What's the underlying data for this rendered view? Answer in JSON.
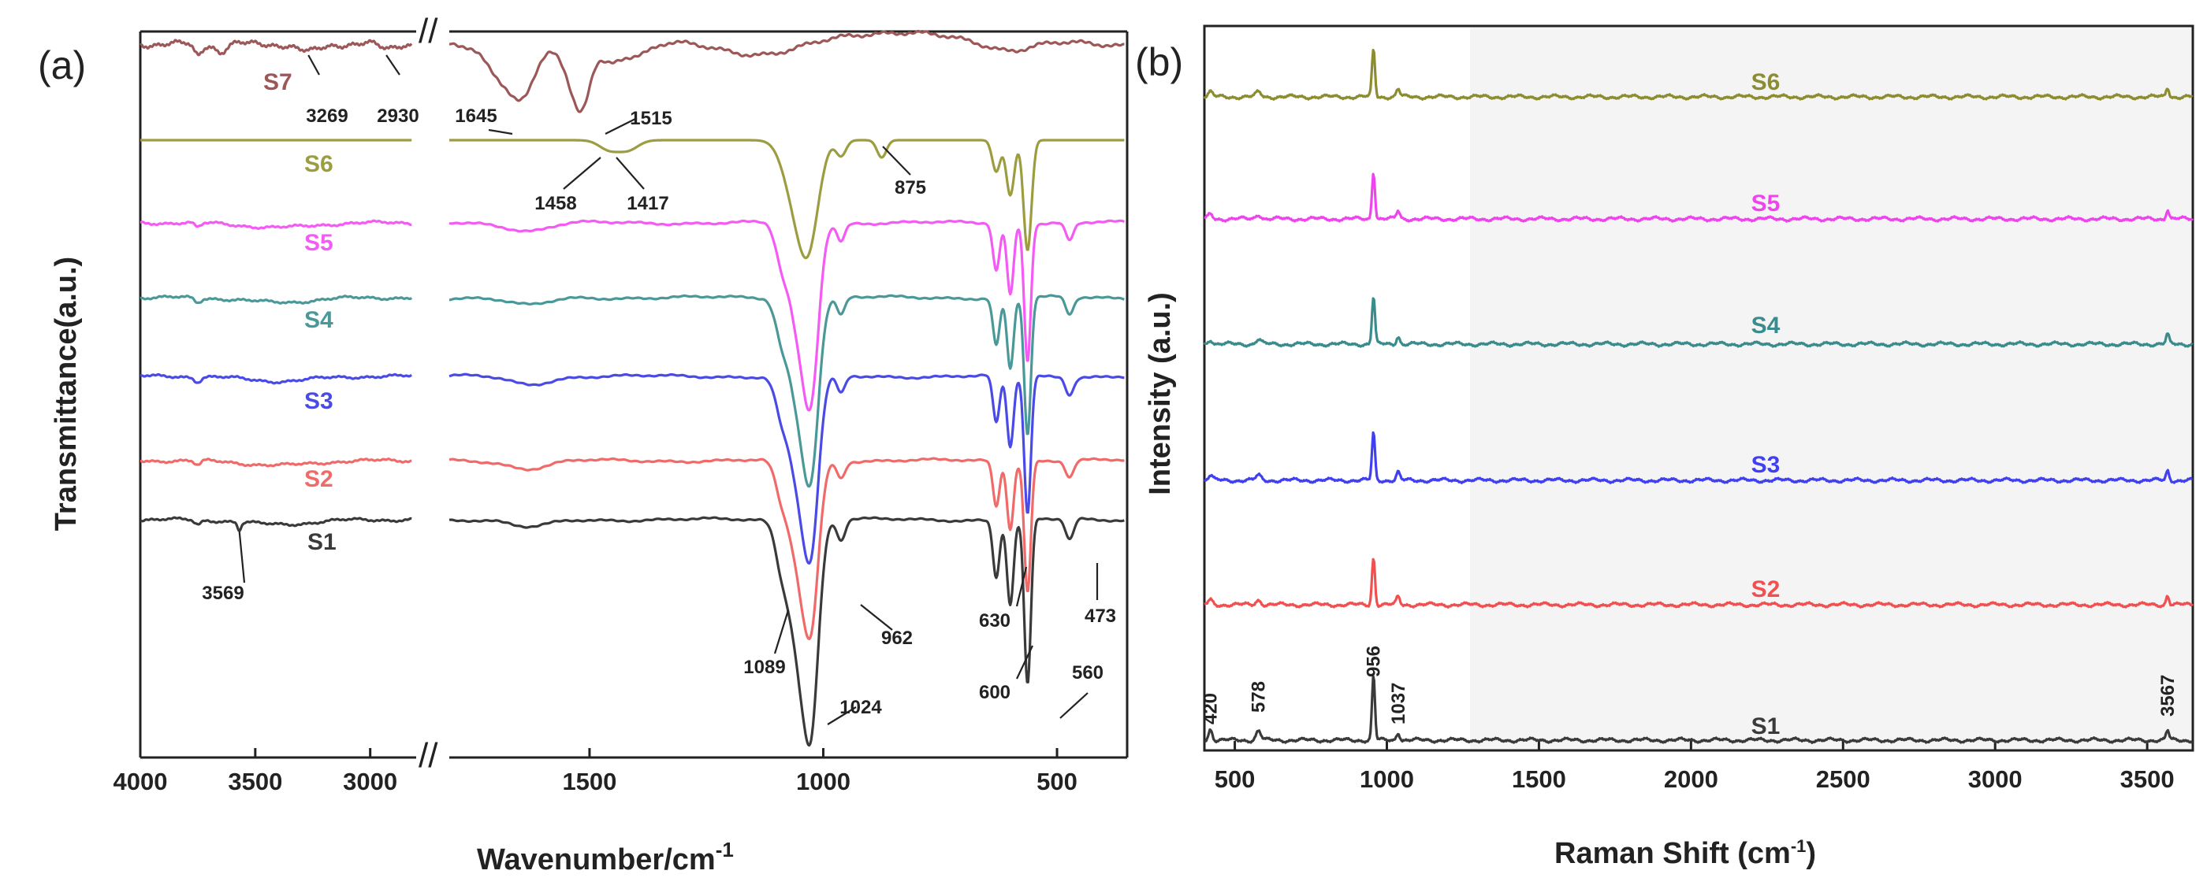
{
  "chart_data": [
    {
      "type": "line",
      "panel_label": "(a)",
      "xlabel": "Wavenumber/cm",
      "xlabel_superscript": "-1",
      "ylabel": "Transmittance(a.u.)",
      "x_ticks": [
        "4000",
        "3500",
        "3000",
        "1500",
        "1000",
        "500"
      ],
      "axis_break": "//",
      "xlim_left_segment": [
        4000,
        2800
      ],
      "xlim_right_segment": [
        1800,
        350
      ],
      "colors": {
        "S1": "#3a3a3a",
        "S2": "#f06a6a",
        "S3": "#4a4ae6",
        "S4": "#4a9898",
        "S5": "#f45af4",
        "S6": "#9c9c40",
        "S7": "#9c5858"
      },
      "series": [
        {
          "name": "S1",
          "baseline": 0
        },
        {
          "name": "S2",
          "baseline": 1
        },
        {
          "name": "S3",
          "baseline": 2
        },
        {
          "name": "S4",
          "baseline": 3
        },
        {
          "name": "S5",
          "baseline": 4
        },
        {
          "name": "S6",
          "baseline": 5
        },
        {
          "name": "S7",
          "baseline": 6
        }
      ],
      "annotations": [
        {
          "text": "3269",
          "x": 3269,
          "series": "S7"
        },
        {
          "text": "2930",
          "x": 2930,
          "series": "S7"
        },
        {
          "text": "1645",
          "x": 1645,
          "series": "S7"
        },
        {
          "text": "1515",
          "x": 1515,
          "series": "S7"
        },
        {
          "text": "1458",
          "x": 1458,
          "series": "S6"
        },
        {
          "text": "1417",
          "x": 1417,
          "series": "S6"
        },
        {
          "text": "875",
          "x": 875,
          "series": "S6"
        },
        {
          "text": "3569",
          "x": 3569,
          "series": "S1"
        },
        {
          "text": "1089",
          "x": 1089,
          "series": "S1"
        },
        {
          "text": "1024",
          "x": 1024,
          "series": "S1"
        },
        {
          "text": "962",
          "x": 962,
          "series": "S1"
        },
        {
          "text": "630",
          "x": 630,
          "series": "S1"
        },
        {
          "text": "600",
          "x": 600,
          "series": "S1"
        },
        {
          "text": "560",
          "x": 560,
          "series": "S1"
        },
        {
          "text": "473",
          "x": 473,
          "series": "S1"
        }
      ]
    },
    {
      "type": "line",
      "panel_label": "(b)",
      "xlabel": "Raman Shift (cm",
      "xlabel_superscript": "-1",
      "xlabel_suffix": ")",
      "ylabel": "Intensity (a.u.)",
      "x_ticks": [
        500,
        1000,
        1500,
        2000,
        2500,
        3000,
        3500
      ],
      "xlim": [
        400,
        3650
      ],
      "colors": {
        "S1": "#3a3a3a",
        "S2": "#f05050",
        "S3": "#4040f0",
        "S4": "#3a8c8c",
        "S5": "#ee44ee",
        "S6": "#8c8c30"
      },
      "series": [
        {
          "name": "S1",
          "baseline": 0
        },
        {
          "name": "S2",
          "baseline": 1
        },
        {
          "name": "S3",
          "baseline": 2
        },
        {
          "name": "S4",
          "baseline": 3
        },
        {
          "name": "S5",
          "baseline": 4
        },
        {
          "name": "S6",
          "baseline": 5
        }
      ],
      "annotations": [
        {
          "text": "420",
          "x": 420
        },
        {
          "text": "578",
          "x": 578
        },
        {
          "text": "956",
          "x": 956
        },
        {
          "text": "1037",
          "x": 1037
        },
        {
          "text": "3567",
          "x": 3567
        }
      ]
    }
  ]
}
